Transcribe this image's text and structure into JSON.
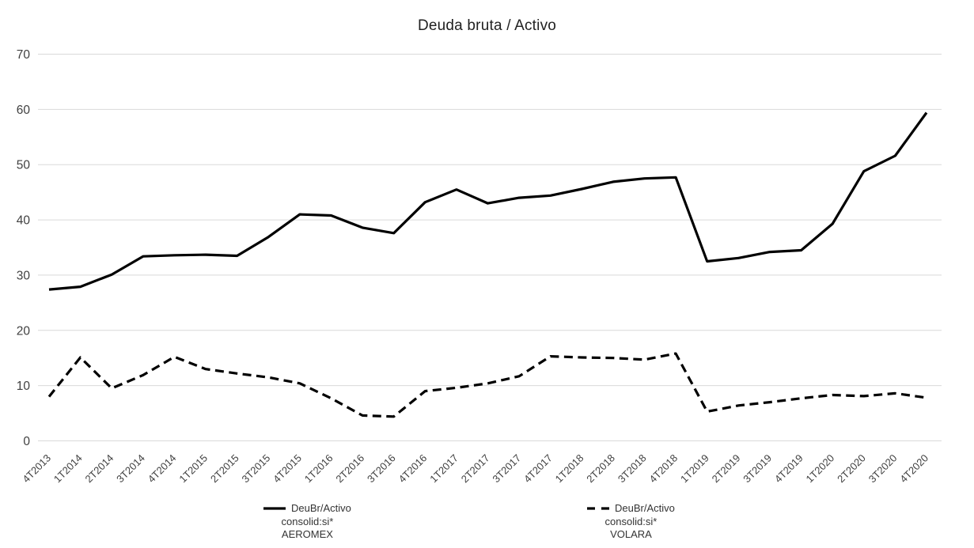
{
  "title": "Deuda bruta / Activo",
  "colors": {
    "series_line": "#000000",
    "gridline": "#d9d9d9",
    "axis_text": "#404040",
    "title_text": "#212121",
    "background": "#ffffff"
  },
  "chart_data": {
    "type": "line",
    "title": "Deuda bruta / Activo",
    "categories": [
      "4T2013",
      "1T2014",
      "2T2014",
      "3T2014",
      "4T2014",
      "1T2015",
      "2T2015",
      "3T2015",
      "4T2015",
      "1T2016",
      "2T2016",
      "3T2016",
      "4T2016",
      "1T2017",
      "2T2017",
      "3T2017",
      "4T2017",
      "1T2018",
      "2T2018",
      "3T2018",
      "4T2018",
      "1T2019",
      "2T2019",
      "3T2019",
      "4T2019",
      "1T2020",
      "2T2020",
      "3T2020",
      "4T2020"
    ],
    "series": [
      {
        "name": "DeuBr/Activo consolid:si* AEROMEX",
        "line_style": "solid",
        "values": [
          27.4,
          27.9,
          30.1,
          33.4,
          33.6,
          33.7,
          33.5,
          36.9,
          41.0,
          40.8,
          38.6,
          37.6,
          43.2,
          45.5,
          43.0,
          44.0,
          44.4,
          45.6,
          46.9,
          47.5,
          47.7,
          32.5,
          33.1,
          34.2,
          34.5,
          39.3,
          48.8,
          51.6,
          59.4
        ]
      },
      {
        "name": "DeuBr/Activo consolid:si* VOLARA",
        "line_style": "dashed",
        "values": [
          8.0,
          15.1,
          9.5,
          11.9,
          15.2,
          13.0,
          12.2,
          11.5,
          10.4,
          7.7,
          4.6,
          4.4,
          9.0,
          9.6,
          10.4,
          11.7,
          15.3,
          15.1,
          15.0,
          14.7,
          15.8,
          5.3,
          6.4,
          7.0,
          7.7,
          8.3,
          8.1,
          8.6,
          7.8
        ]
      }
    ],
    "ylim": [
      0,
      70
    ],
    "y_ticks": [
      0,
      10,
      20,
      30,
      40,
      50,
      60,
      70
    ],
    "grid": "horizontal",
    "legend_position": "bottom",
    "x_label_rotation_deg": 45
  },
  "legend": {
    "items": [
      {
        "marker": "solid-line",
        "line1": "DeuBr/Activo",
        "line2": "consolid:si*",
        "line3": "AEROMEX"
      },
      {
        "marker": "dashed-line",
        "line1": "DeuBr/Activo",
        "line2": "consolid:si*",
        "line3": "VOLARA"
      }
    ]
  }
}
